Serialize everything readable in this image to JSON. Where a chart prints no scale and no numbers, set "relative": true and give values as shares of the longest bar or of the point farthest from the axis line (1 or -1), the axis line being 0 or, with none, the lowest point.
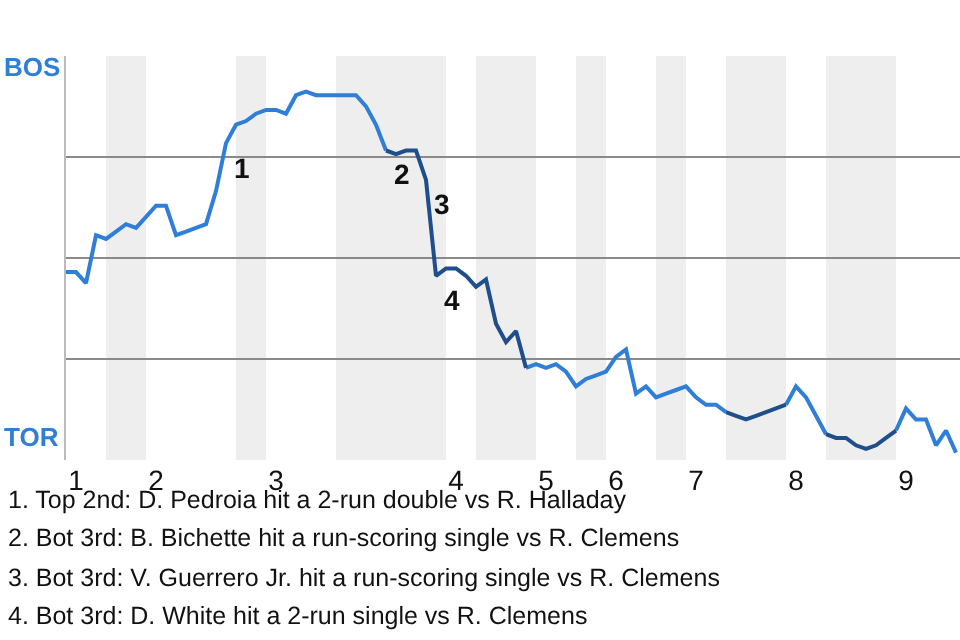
{
  "chart_data": {
    "type": "line",
    "relative": true,
    "categories": [
      null,
      "1",
      null,
      null,
      null,
      null,
      null,
      null,
      null,
      "2",
      null,
      null,
      null,
      null,
      null,
      null,
      null,
      null,
      null,
      null,
      null,
      "3",
      null,
      null,
      null,
      null,
      null,
      null,
      null,
      null,
      null,
      null,
      null,
      null,
      null,
      null,
      null,
      null,
      null,
      "4",
      null,
      null,
      null,
      null,
      null,
      null,
      null,
      null,
      "5",
      null,
      null,
      null,
      null,
      null,
      null,
      "6",
      null,
      null,
      null,
      null,
      null,
      null,
      null,
      "7",
      null,
      null,
      null,
      null,
      null,
      null,
      null,
      null,
      null,
      "8",
      null,
      null,
      null,
      null,
      null,
      null,
      null,
      null,
      null,
      null,
      "9",
      null,
      null,
      null,
      null,
      null
    ],
    "grid": "y",
    "marker": "none",
    "line_style": "solid",
    "series": [
      {
        "color": "#2f7ed8",
        "values": [
          0.51,
          0.51,
          0.48,
          0.61,
          0.6,
          0.62,
          0.64,
          0.63,
          0.66,
          0.69,
          0.69,
          0.61,
          0.62,
          0.63,
          0.64,
          0.73,
          0.86,
          0.91,
          0.92,
          0.94,
          0.95,
          0.95,
          0.94,
          0.99,
          1,
          0.99,
          0.99,
          0.99,
          0.99,
          0.99,
          0.96,
          0.91,
          0.84,
          null,
          null,
          null,
          null,
          null,
          null,
          null,
          null,
          null,
          null,
          null,
          null,
          null,
          0.25,
          0.26,
          0.25,
          0.26,
          0.24,
          0.2,
          0.22,
          0.23,
          0.24,
          0.28,
          0.3,
          0.18,
          0.2,
          0.17,
          0.18,
          0.19,
          0.2,
          0.17,
          0.15,
          0.15,
          0.13,
          null,
          null,
          null,
          null,
          null,
          0.15,
          0.2,
          0.17,
          0.12,
          0.07,
          null,
          null,
          null,
          null,
          null,
          null,
          0.08,
          0.14,
          0.11,
          0.11,
          0.04,
          0.08,
          0.02
        ]
      },
      {
        "color": "#1f4e8c",
        "values": [
          null,
          null,
          null,
          null,
          null,
          null,
          null,
          null,
          null,
          null,
          null,
          null,
          null,
          null,
          null,
          null,
          null,
          null,
          null,
          null,
          null,
          null,
          null,
          null,
          null,
          null,
          null,
          null,
          null,
          null,
          null,
          null,
          0.84,
          0.83,
          0.84,
          0.84,
          0.76,
          0.5,
          0.52,
          0.52,
          0.5,
          0.47,
          0.49,
          0.37,
          0.32,
          0.35,
          0.25,
          null,
          null,
          null,
          null,
          null,
          null,
          null,
          null,
          null,
          null,
          null,
          null,
          null,
          null,
          null,
          null,
          null,
          null,
          null,
          0.13,
          0.12,
          0.11,
          0.12,
          0.13,
          0.14,
          0.15,
          null,
          null,
          null,
          0.07,
          0.06,
          0.06,
          0.04,
          0.03,
          0.04,
          0.06,
          0.08,
          null,
          null,
          null,
          null,
          null,
          null
        ]
      }
    ],
    "annotations": [
      "1",
      "2",
      "3",
      "4",
      "BOS",
      "TOR",
      "1. Top 2nd: D. Pedroia hit a 2-run double vs R. Halladay",
      "2. Bot 3rd: B. Bichette hit a run-scoring single vs R. Clemens",
      "3. Bot 3rd: V. Guerrero Jr. hit a run-scoring single vs R. Clemens",
      "4. Bot 3rd: D. White hit a 2-run single vs R. Clemens"
    ]
  }
}
